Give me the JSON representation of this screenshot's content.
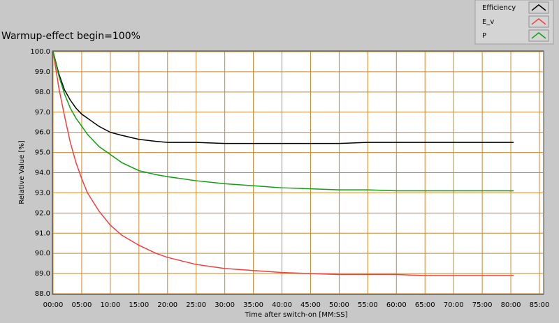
{
  "chart_data": {
    "type": "line",
    "title": "Warmup-effect begin=100%",
    "x_label": "Time after switch-on [MM:SS]",
    "y_label": "Relative Value [%]",
    "x": [
      0,
      1,
      2,
      3,
      4,
      5,
      6,
      8,
      10,
      12,
      15,
      18,
      20,
      25,
      30,
      35,
      40,
      45,
      50,
      55,
      60,
      65,
      70,
      75,
      80.5
    ],
    "series": [
      {
        "name": "Efficiency",
        "color": "#000000",
        "values": [
          100,
          98.9,
          98.1,
          97.6,
          97.2,
          96.9,
          96.7,
          96.3,
          96.0,
          95.85,
          95.65,
          95.55,
          95.5,
          95.5,
          95.45,
          95.45,
          95.45,
          95.45,
          95.45,
          95.5,
          95.5,
          95.5,
          95.5,
          95.5,
          95.5
        ]
      },
      {
        "name": "E_v",
        "color": "#f04040",
        "values": [
          100,
          98.2,
          96.8,
          95.5,
          94.5,
          93.7,
          93.0,
          92.1,
          91.4,
          90.9,
          90.4,
          90.0,
          89.8,
          89.45,
          89.25,
          89.15,
          89.05,
          89.0,
          88.95,
          88.95,
          88.95,
          88.9,
          88.9,
          88.9,
          88.9
        ]
      },
      {
        "name": "P",
        "color": "#10a010",
        "values": [
          100,
          98.8,
          97.9,
          97.2,
          96.7,
          96.3,
          95.9,
          95.3,
          94.9,
          94.5,
          94.1,
          93.9,
          93.8,
          93.6,
          93.45,
          93.35,
          93.25,
          93.2,
          93.15,
          93.15,
          93.1,
          93.1,
          93.1,
          93.1,
          93.1
        ]
      }
    ],
    "xlim": [
      0,
      85
    ],
    "xticks": [
      {
        "value": 0,
        "label": "00:00"
      },
      {
        "value": 5,
        "label": "05:00"
      },
      {
        "value": 10,
        "label": "10:00"
      },
      {
        "value": 15,
        "label": "15:00"
      },
      {
        "value": 20,
        "label": "20:00"
      },
      {
        "value": 25,
        "label": "25:00"
      },
      {
        "value": 30,
        "label": "30:00"
      },
      {
        "value": 35,
        "label": "35:00"
      },
      {
        "value": 40,
        "label": "40:00"
      },
      {
        "value": 45,
        "label": "45:00"
      },
      {
        "value": 50,
        "label": "50:00"
      },
      {
        "value": 55,
        "label": "55:00"
      },
      {
        "value": 60,
        "label": "60:00"
      },
      {
        "value": 65,
        "label": "65:00"
      },
      {
        "value": 70,
        "label": "70:00"
      },
      {
        "value": 75,
        "label": "75:00"
      },
      {
        "value": 80,
        "label": "80:00"
      },
      {
        "value": 85,
        "label": "85:00"
      }
    ],
    "ylim": [
      88,
      100
    ],
    "yticks": [
      {
        "value": 88,
        "label": "88.0"
      },
      {
        "value": 89,
        "label": "89.0"
      },
      {
        "value": 90,
        "label": "90.0"
      },
      {
        "value": 91,
        "label": "91.0"
      },
      {
        "value": 92,
        "label": "92.0"
      },
      {
        "value": 93,
        "label": "93.0"
      },
      {
        "value": 94,
        "label": "94.0"
      },
      {
        "value": 95,
        "label": "95.0"
      },
      {
        "value": 96,
        "label": "96.0"
      },
      {
        "value": 97,
        "label": "97.0"
      },
      {
        "value": 98,
        "label": "98.0"
      },
      {
        "value": 99,
        "label": "99.0"
      },
      {
        "value": 100,
        "label": "100.0"
      }
    ],
    "grid": true,
    "grid_color": "#c88a30",
    "legend": "top-right"
  }
}
